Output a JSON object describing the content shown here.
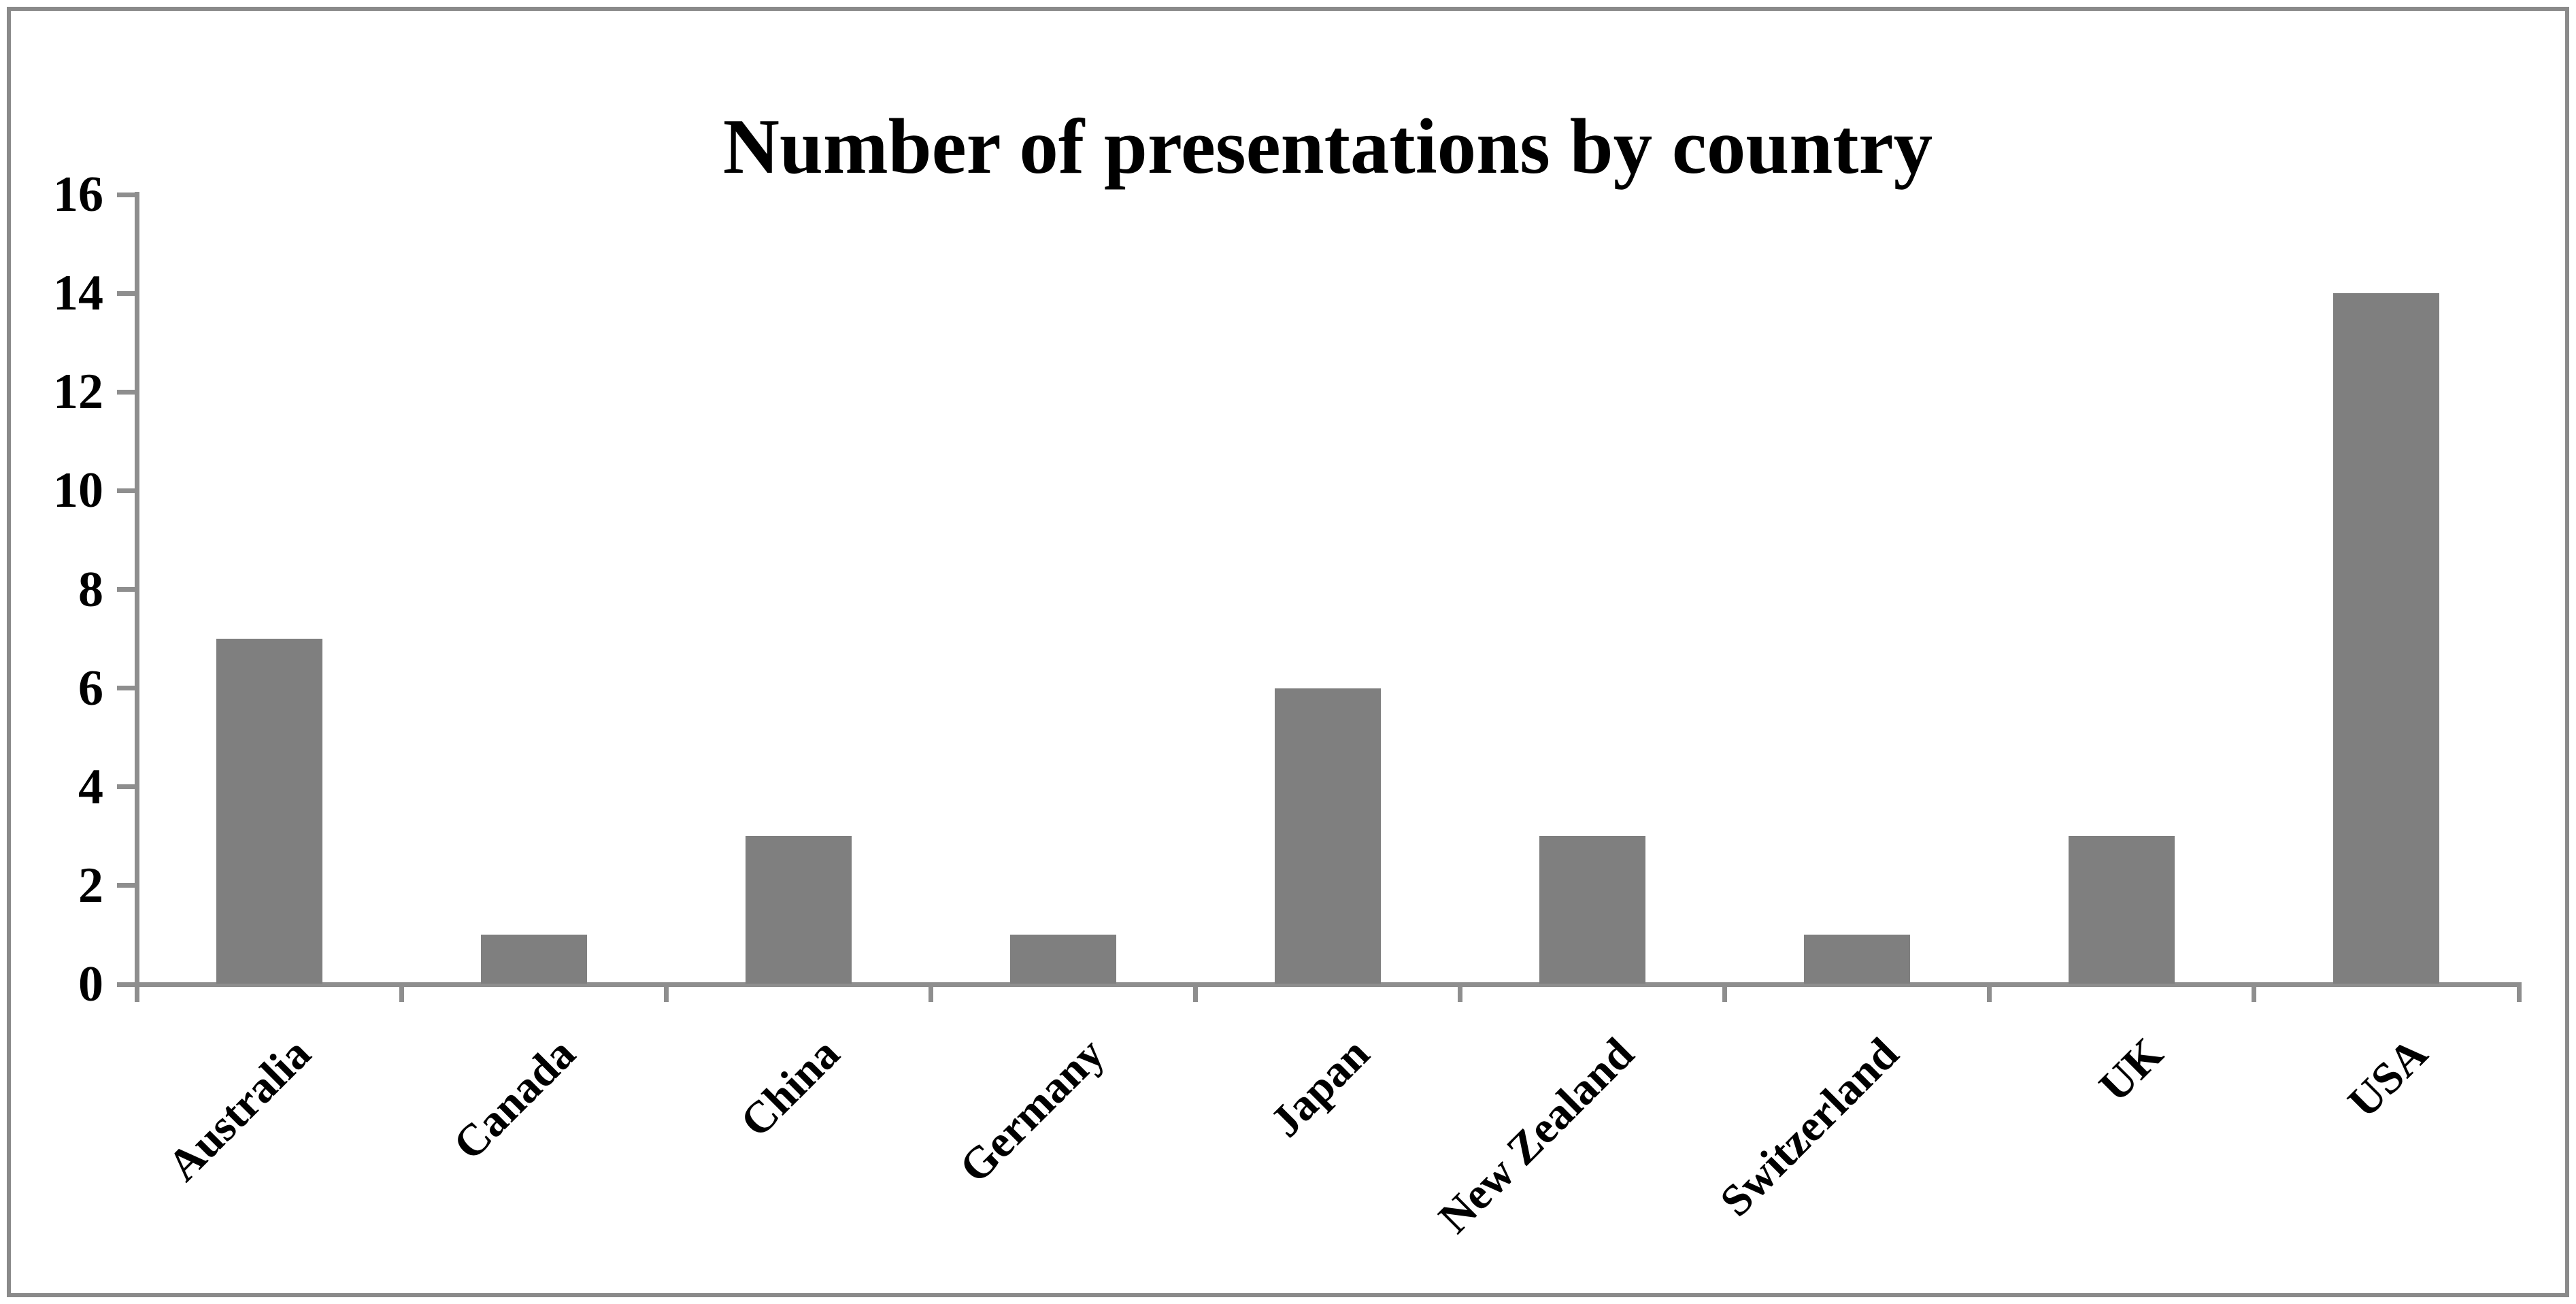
{
  "chart_data": {
    "type": "bar",
    "title": "Number of presentations by country",
    "categories": [
      "Australia",
      "Canada",
      "China",
      "Germany",
      "Japan",
      "New Zealand",
      "Switzerland",
      "UK",
      "USA"
    ],
    "values": [
      7,
      1,
      3,
      1,
      6,
      3,
      1,
      3,
      14
    ],
    "xlabel": "",
    "ylabel": "",
    "ylim": [
      0,
      16
    ],
    "yticks": [
      0,
      2,
      4,
      6,
      8,
      10,
      12,
      14,
      16
    ],
    "grid": false,
    "legend": "none",
    "bar_color": "#7f7f7f",
    "axis_color": "#8e8e8e",
    "text_color": "#000000",
    "frame_border_color": "#8a8a8a",
    "background_color": "#ffffff"
  }
}
